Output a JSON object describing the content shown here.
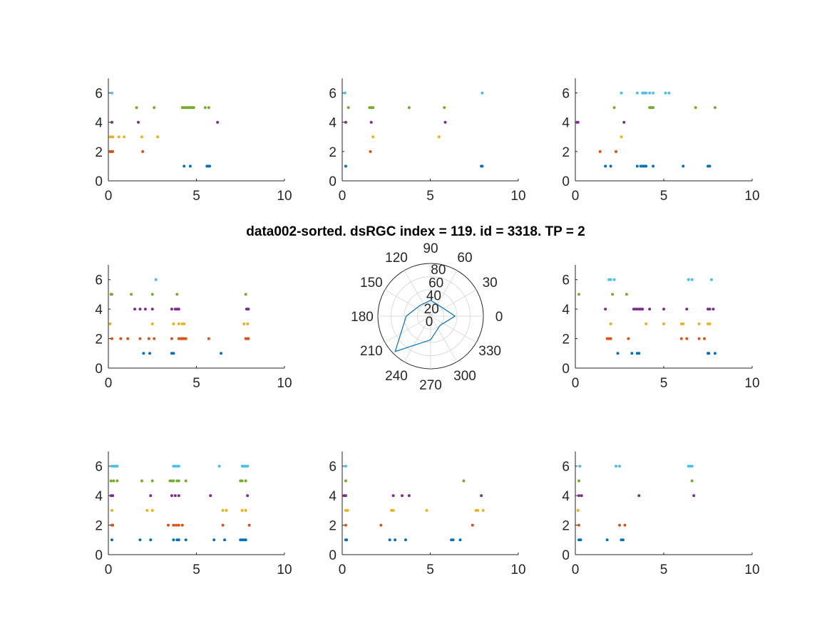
{
  "figure": {
    "title": "data002-sorted. dsRGC index = 119. id = 3318. TP = 2"
  },
  "chart_data": [
    {
      "type": "scatter",
      "position": "top-left",
      "xlim": [
        0,
        10
      ],
      "ylim": [
        0,
        7
      ],
      "xticks": [
        "0",
        "5",
        "10"
      ],
      "yticks": [
        "0",
        "2",
        "4",
        "6"
      ],
      "series": [
        {
          "y": 1,
          "color": "#0072BD",
          "x": [
            4.3,
            4.65,
            5.6,
            5.7,
            5.75
          ]
        },
        {
          "y": 2,
          "color": "#D95319",
          "x": [
            0.1,
            0.15,
            0.2,
            0.25,
            1.95
          ]
        },
        {
          "y": 3,
          "color": "#EDB120",
          "x": [
            0.1,
            0.2,
            0.25,
            0.6,
            0.9,
            1.9,
            2.8
          ]
        },
        {
          "y": 4,
          "color": "#7E2F8E",
          "x": [
            0.2,
            1.7,
            6.2
          ]
        },
        {
          "y": 5,
          "color": "#77AC30",
          "x": [
            1.6,
            2.6,
            4.2,
            4.3,
            4.4,
            4.5,
            4.55,
            4.6,
            4.7,
            4.75,
            4.8,
            4.85,
            5.5,
            5.7
          ]
        },
        {
          "y": 6,
          "color": "#4DBEEE",
          "x": [
            0.2
          ]
        }
      ]
    },
    {
      "type": "scatter",
      "position": "top-center",
      "xlim": [
        0,
        10
      ],
      "ylim": [
        0,
        7
      ],
      "xticks": [
        "0",
        "5",
        "10"
      ],
      "yticks": [
        "0",
        "2",
        "4",
        "6"
      ],
      "series": [
        {
          "y": 1,
          "color": "#0072BD",
          "x": [
            0.2,
            7.9,
            7.95
          ]
        },
        {
          "y": 2,
          "color": "#D95319",
          "x": [
            1.6
          ]
        },
        {
          "y": 3,
          "color": "#EDB120",
          "x": [
            1.75,
            5.5
          ]
        },
        {
          "y": 4,
          "color": "#7E2F8E",
          "x": [
            0.2,
            1.65,
            5.85
          ]
        },
        {
          "y": 5,
          "color": "#77AC30",
          "x": [
            0.35,
            1.55,
            1.65,
            1.75,
            3.8,
            5.8
          ]
        },
        {
          "y": 6,
          "color": "#4DBEEE",
          "x": [
            0.15,
            7.95
          ]
        }
      ]
    },
    {
      "type": "scatter",
      "position": "top-right",
      "xlim": [
        0,
        10
      ],
      "ylim": [
        0,
        7
      ],
      "xticks": [
        "0",
        "5",
        "10"
      ],
      "yticks": [
        "0",
        "2",
        "4",
        "6"
      ],
      "series": [
        {
          "y": 1,
          "color": "#0072BD",
          "x": [
            1.7,
            2.0,
            3.5,
            3.7,
            3.8,
            3.9,
            4.0,
            4.4,
            6.1,
            7.5,
            7.6
          ]
        },
        {
          "y": 2,
          "color": "#D95319",
          "x": [
            1.4,
            2.3
          ]
        },
        {
          "y": 3,
          "color": "#EDB120",
          "x": [
            2.6
          ]
        },
        {
          "y": 4,
          "color": "#7E2F8E",
          "x": [
            0.1,
            0.15,
            2.75
          ]
        },
        {
          "y": 5,
          "color": "#77AC30",
          "x": [
            2.2,
            4.2,
            4.25,
            4.3,
            4.4,
            6.8,
            7.9
          ]
        },
        {
          "y": 6,
          "color": "#4DBEEE",
          "x": [
            2.6,
            3.5,
            3.8,
            3.9,
            4.0,
            4.2,
            4.4,
            5.1,
            5.3
          ]
        }
      ]
    },
    {
      "type": "scatter",
      "position": "middle-left",
      "xlim": [
        0,
        10
      ],
      "ylim": [
        0,
        7
      ],
      "xticks": [
        "0",
        "5",
        "10"
      ],
      "yticks": [
        "0",
        "2",
        "4",
        "6"
      ],
      "series": [
        {
          "y": 1,
          "color": "#0072BD",
          "x": [
            2.0,
            2.35,
            3.6,
            3.7,
            6.4
          ]
        },
        {
          "y": 2,
          "color": "#D95319",
          "x": [
            0.2,
            0.7,
            1.1,
            1.8,
            2.3,
            2.6,
            3.6,
            4.0,
            4.1,
            4.15,
            4.2,
            4.25,
            4.3,
            4.4,
            5.7,
            7.8,
            7.9,
            7.95
          ]
        },
        {
          "y": 3,
          "color": "#EDB120",
          "x": [
            0.1,
            2.5,
            3.7,
            4.0,
            4.2,
            4.3,
            7.7,
            7.9
          ]
        },
        {
          "y": 4,
          "color": "#7E2F8E",
          "x": [
            1.5,
            1.8,
            2.1,
            2.5,
            3.6,
            3.8,
            3.9,
            4.0,
            7.85,
            7.9,
            7.95
          ]
        },
        {
          "y": 5,
          "color": "#77AC30",
          "x": [
            0.15,
            0.2,
            1.3,
            2.5,
            3.9,
            7.8
          ]
        },
        {
          "y": 6,
          "color": "#4DBEEE",
          "x": [
            2.7
          ]
        }
      ]
    },
    {
      "type": "polar",
      "position": "middle-center",
      "angle_ticks": [
        "0",
        "30",
        "60",
        "90",
        "120",
        "150",
        "180",
        "210",
        "240",
        "270",
        "300",
        "330"
      ],
      "radius_ticks": [
        "0",
        "20",
        "40",
        "60",
        "80"
      ],
      "rlim": [
        0,
        80
      ],
      "series": [
        {
          "color": "#0072BD",
          "theta_deg": [
            0,
            45,
            90,
            135,
            180,
            225,
            270,
            315
          ],
          "r": [
            37,
            21,
            24,
            23,
            37,
            76,
            36,
            20
          ]
        }
      ]
    },
    {
      "type": "scatter",
      "position": "middle-right",
      "xlim": [
        0,
        10
      ],
      "ylim": [
        0,
        7
      ],
      "xticks": [
        "0",
        "5",
        "10"
      ],
      "yticks": [
        "0",
        "2",
        "4",
        "6"
      ],
      "series": [
        {
          "y": 1,
          "color": "#0072BD",
          "x": [
            2.4,
            3.2,
            3.5,
            3.6,
            7.5,
            7.55,
            7.9
          ]
        },
        {
          "y": 2,
          "color": "#D95319",
          "x": [
            1.8,
            1.9,
            2.0,
            3.0,
            6.0,
            6.3,
            7.0,
            7.3
          ]
        },
        {
          "y": 3,
          "color": "#EDB120",
          "x": [
            2.0,
            4.0,
            5.0,
            6.0,
            6.1,
            7.0,
            7.5,
            7.6
          ]
        },
        {
          "y": 4,
          "color": "#7E2F8E",
          "x": [
            1.7,
            3.3,
            3.4,
            3.5,
            3.6,
            3.7,
            3.8,
            4.2,
            5.0,
            6.3,
            7.5,
            7.6,
            7.8
          ]
        },
        {
          "y": 5,
          "color": "#77AC30",
          "x": [
            0.2,
            2.1,
            2.9
          ]
        },
        {
          "y": 6,
          "color": "#4DBEEE",
          "x": [
            1.9,
            2.0,
            2.2,
            6.4,
            6.6,
            7.7
          ]
        }
      ]
    },
    {
      "type": "scatter",
      "position": "bottom-left",
      "xlim": [
        0,
        10
      ],
      "ylim": [
        0,
        7
      ],
      "xticks": [
        "0",
        "5",
        "10"
      ],
      "yticks": [
        "0",
        "2",
        "4",
        "6"
      ],
      "series": [
        {
          "y": 1,
          "color": "#0072BD",
          "x": [
            0.2,
            1.8,
            2.4,
            3.7,
            3.9,
            4.0,
            4.4,
            6.0,
            6.6,
            7.5,
            7.6,
            7.7,
            7.8
          ]
        },
        {
          "y": 2,
          "color": "#D95319",
          "x": [
            0.2,
            0.25,
            3.4,
            3.7,
            3.85,
            4.0,
            4.2,
            6.5,
            8.0
          ]
        },
        {
          "y": 3,
          "color": "#EDB120",
          "x": [
            0.2,
            2.2,
            2.5,
            6.5,
            6.7,
            7.6,
            7.8
          ]
        },
        {
          "y": 4,
          "color": "#7E2F8E",
          "x": [
            0.15,
            0.25,
            2.4,
            3.6,
            3.8,
            4.0,
            5.8,
            7.9
          ]
        },
        {
          "y": 5,
          "color": "#77AC30",
          "x": [
            0.15,
            0.3,
            0.5,
            1.9,
            2.5,
            3.5,
            3.6,
            3.7,
            3.9,
            4.0,
            4.4,
            7.5,
            7.6,
            7.8
          ]
        },
        {
          "y": 6,
          "color": "#4DBEEE",
          "x": [
            0.2,
            0.3,
            0.4,
            0.5,
            3.7,
            3.8,
            3.9,
            4.0,
            6.3,
            7.6,
            7.7,
            7.8,
            7.9
          ]
        }
      ]
    },
    {
      "type": "scatter",
      "position": "bottom-center",
      "xlim": [
        0,
        10
      ],
      "ylim": [
        0,
        7
      ],
      "xticks": [
        "0",
        "5",
        "10"
      ],
      "yticks": [
        "0",
        "2",
        "4",
        "6"
      ],
      "series": [
        {
          "y": 1,
          "color": "#0072BD",
          "x": [
            0.2,
            0.25,
            2.7,
            3.0,
            3.6,
            6.2,
            6.3,
            6.7
          ]
        },
        {
          "y": 2,
          "color": "#D95319",
          "x": [
            0.2,
            2.2,
            7.4
          ]
        },
        {
          "y": 3,
          "color": "#EDB120",
          "x": [
            0.2,
            0.3,
            2.8,
            2.9,
            4.8,
            7.6,
            7.7,
            8.0
          ]
        },
        {
          "y": 4,
          "color": "#7E2F8E",
          "x": [
            0.1,
            0.2,
            2.9,
            3.4,
            3.8,
            7.9
          ]
        },
        {
          "y": 5,
          "color": "#77AC30",
          "x": [
            0.2,
            6.9
          ]
        },
        {
          "y": 6,
          "color": "#4DBEEE",
          "x": [
            0.2
          ]
        }
      ]
    },
    {
      "type": "scatter",
      "position": "bottom-right",
      "xlim": [
        0,
        10
      ],
      "ylim": [
        0,
        7
      ],
      "xticks": [
        "0",
        "5",
        "10"
      ],
      "yticks": [
        "0",
        "2",
        "4",
        "6"
      ],
      "series": [
        {
          "y": 1,
          "color": "#0072BD",
          "x": [
            0.2,
            0.3,
            1.8,
            2.6,
            2.7
          ]
        },
        {
          "y": 2,
          "color": "#D95319",
          "x": [
            0.2,
            2.5,
            2.8
          ]
        },
        {
          "y": 3,
          "color": "#EDB120",
          "x": [
            0.15
          ]
        },
        {
          "y": 4,
          "color": "#7E2F8E",
          "x": [
            0.2,
            0.35,
            3.6,
            6.7
          ]
        },
        {
          "y": 5,
          "color": "#77AC30",
          "x": [
            0.2,
            6.6
          ]
        },
        {
          "y": 6,
          "color": "#4DBEEE",
          "x": [
            0.25,
            2.3,
            2.5,
            6.4,
            6.5,
            6.6
          ]
        }
      ]
    }
  ]
}
